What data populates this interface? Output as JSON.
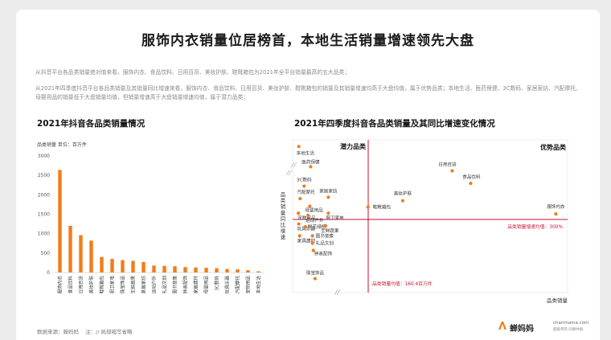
{
  "page": {
    "title": "服饰内衣销量位居榜首，本地生活销量增速领先大盘",
    "desc1": "从抖音平台各品类销量绝对值来看，服饰内衣、食品饮料、日用百货、美妆护肤、鞋靴箱包为2021年全平台销量最高的五大品类；",
    "desc2": "从2021年四季度抖音平台各品类销量及其销量同比增速来看，服饰内衣、食品饮料、日用百货、美妆护肤、鞋靴箱包的销量及其销量增速均高于大盘均值，属于优势品类；本地生活、医药保健、3C数码、家居家纺、汽配摩托、母婴用品的销量低于大盘销量均值，但销量增速高于大盘销量增速均值，属于潜力品类；",
    "left_title": "2021年抖音各品类销量情况",
    "unit_label": "品类销量  单位：百万件",
    "right_title": "2021年四季度抖音各品类销量及其同比增速变化情况",
    "footer_source": "数据来源：蝉妈妈",
    "footer_note": "注：// 局部缩写省略",
    "brand_name": "蝉妈妈",
    "brand_url": "chanmama.com",
    "brand_tag": "超级带货  同频共振",
    "accent": "#f07d1a"
  },
  "chart_data": [
    {
      "type": "bar",
      "title": "2021年抖音各品类销量情况",
      "ylabel": "品类销量  单位：百万件",
      "ylim": [
        0,
        3000
      ],
      "yticks": [
        0,
        500,
        1000,
        1500,
        2000,
        2500,
        3000
      ],
      "grid": false,
      "categories": [
        "服饰内衣",
        "食品饮料",
        "日用百货",
        "美妆护肤",
        "鞋靴箱包",
        "厨卫家电",
        "珠宝饰品",
        "生鲜蔬果",
        "家居家纺",
        "运动户外",
        "礼品文创",
        "图书音像",
        "钟表配饰",
        "家居建材",
        "母婴用品",
        "3C数码",
        "玩具乐器",
        "汽配摩托",
        "宠物用品",
        "本地生活"
      ],
      "values": [
        2640,
        1200,
        960,
        820,
        400,
        350,
        320,
        300,
        270,
        180,
        170,
        160,
        140,
        130,
        120,
        110,
        90,
        80,
        60,
        30
      ],
      "color": "#f07d1a"
    },
    {
      "type": "scatter",
      "title": "2021年四季度抖音各品类销量及其同比增速变化情况",
      "xlabel": "品类销量",
      "ylabel": "品类销量同比增速",
      "quadrants": [
        "潜力品类",
        "优势品类"
      ],
      "x_mean": 160.4,
      "y_mean": 300,
      "x_mean_label": "品类销量均值：160.4百万件",
      "y_mean_label": "品类销量增速均值：300%",
      "points": [
        {
          "label": "本地生活",
          "x": 3,
          "y": 1350
        },
        {
          "label": "医药保健",
          "x": 30,
          "y": 1060
        },
        {
          "label": "3C数码",
          "x": 15,
          "y": 780
        },
        {
          "label": "汽配摩托",
          "x": 6,
          "y": 600
        },
        {
          "label": "家居家纺",
          "x": 70,
          "y": 620
        },
        {
          "label": "母婴用品",
          "x": 28,
          "y": 490
        },
        {
          "label": "宠物用品",
          "x": 2,
          "y": 390
        },
        {
          "label": "运动户外",
          "x": 24,
          "y": 360
        },
        {
          "label": "厨卫家电",
          "x": 70,
          "y": 390
        },
        {
          "label": "玩具乐器",
          "x": 3,
          "y": 250
        },
        {
          "label": "鲜花绿植",
          "x": 18,
          "y": 220
        },
        {
          "label": "生鲜蔬果",
          "x": 64,
          "y": 230
        },
        {
          "label": "家具建材",
          "x": 5,
          "y": 120
        },
        {
          "label": "图书音像",
          "x": 34,
          "y": 120
        },
        {
          "label": "礼品文创",
          "x": 34,
          "y": 40
        },
        {
          "label": "钟表配饰",
          "x": 36,
          "y": -40
        },
        {
          "label": "珠宝饰品",
          "x": 40,
          "y": -350
        },
        {
          "label": "日用百货",
          "x": 890,
          "y": 1000
        },
        {
          "label": "食品饮料",
          "x": 1050,
          "y": 820
        },
        {
          "label": "美妆护肤",
          "x": 460,
          "y": 570
        },
        {
          "label": "鞋靴箱包",
          "x": 160,
          "y": 480
        },
        {
          "label": "服饰内衣",
          "x": 1790,
          "y": 380
        }
      ],
      "color": "#f07d1a"
    }
  ]
}
